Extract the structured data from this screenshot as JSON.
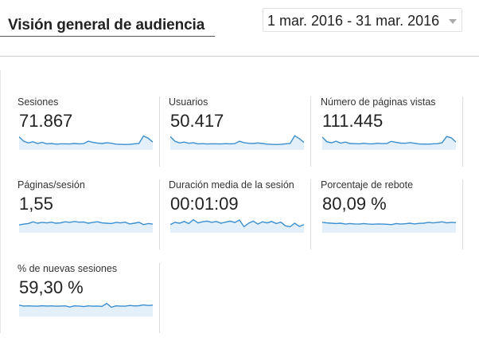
{
  "header": {
    "title": "Visión general de audiencia",
    "date_range": "1 mar. 2016 - 31 mar. 2016"
  },
  "colors": {
    "sparkline_line": "#3b8fd0",
    "sparkline_fill": "#e4f0f9"
  },
  "metrics": [
    {
      "label": "Sesiones",
      "value": "71.867",
      "trend": [
        0.7,
        0.45,
        0.35,
        0.42,
        0.32,
        0.38,
        0.3,
        0.32,
        0.28,
        0.3,
        0.3,
        0.29,
        0.32,
        0.3,
        0.31,
        0.45,
        0.38,
        0.34,
        0.32,
        0.36,
        0.33,
        0.28,
        0.27,
        0.26,
        0.27,
        0.3,
        0.32,
        0.75,
        0.62,
        0.4
      ]
    },
    {
      "label": "Usuarios",
      "value": "50.417",
      "trend": [
        0.72,
        0.45,
        0.35,
        0.4,
        0.33,
        0.36,
        0.3,
        0.31,
        0.29,
        0.3,
        0.3,
        0.29,
        0.31,
        0.3,
        0.31,
        0.45,
        0.37,
        0.33,
        0.32,
        0.35,
        0.32,
        0.28,
        0.27,
        0.26,
        0.27,
        0.3,
        0.32,
        0.76,
        0.6,
        0.38
      ]
    },
    {
      "label": "Número de páginas vistas",
      "value": "111.445",
      "trend": [
        0.68,
        0.42,
        0.36,
        0.45,
        0.34,
        0.4,
        0.32,
        0.31,
        0.3,
        0.33,
        0.3,
        0.3,
        0.33,
        0.31,
        0.32,
        0.44,
        0.38,
        0.34,
        0.33,
        0.37,
        0.33,
        0.29,
        0.28,
        0.28,
        0.3,
        0.31,
        0.36,
        0.72,
        0.64,
        0.4
      ]
    },
    {
      "label": "Páginas/sesión",
      "value": "1,55",
      "trend": [
        0.4,
        0.45,
        0.48,
        0.58,
        0.5,
        0.55,
        0.52,
        0.56,
        0.5,
        0.52,
        0.58,
        0.55,
        0.6,
        0.56,
        0.57,
        0.5,
        0.55,
        0.58,
        0.52,
        0.5,
        0.48,
        0.55,
        0.52,
        0.56,
        0.46,
        0.5,
        0.55,
        0.42,
        0.48,
        0.45
      ]
    },
    {
      "label": "Duración media de la sesión",
      "value": "00:01:09",
      "trend": [
        0.42,
        0.55,
        0.5,
        0.6,
        0.48,
        0.7,
        0.52,
        0.58,
        0.62,
        0.55,
        0.6,
        0.5,
        0.56,
        0.62,
        0.54,
        0.68,
        0.3,
        0.5,
        0.62,
        0.45,
        0.58,
        0.52,
        0.6,
        0.48,
        0.56,
        0.35,
        0.3,
        0.5,
        0.32,
        0.42
      ]
    },
    {
      "label": "Porcentaje de rebote",
      "value": "80,09 %",
      "trend": [
        0.55,
        0.52,
        0.5,
        0.48,
        0.5,
        0.45,
        0.48,
        0.46,
        0.45,
        0.48,
        0.45,
        0.44,
        0.46,
        0.45,
        0.44,
        0.42,
        0.48,
        0.45,
        0.47,
        0.5,
        0.46,
        0.49,
        0.5,
        0.55,
        0.52,
        0.54,
        0.58,
        0.52,
        0.55,
        0.53
      ]
    },
    {
      "label": "% de nuevas sesiones",
      "value": "59,30 %",
      "trend": [
        0.6,
        0.55,
        0.56,
        0.55,
        0.54,
        0.57,
        0.55,
        0.56,
        0.54,
        0.55,
        0.56,
        0.5,
        0.56,
        0.55,
        0.52,
        0.56,
        0.54,
        0.55,
        0.53,
        0.7,
        0.48,
        0.56,
        0.55,
        0.54,
        0.58,
        0.56,
        0.57,
        0.62,
        0.58,
        0.6
      ]
    }
  ]
}
